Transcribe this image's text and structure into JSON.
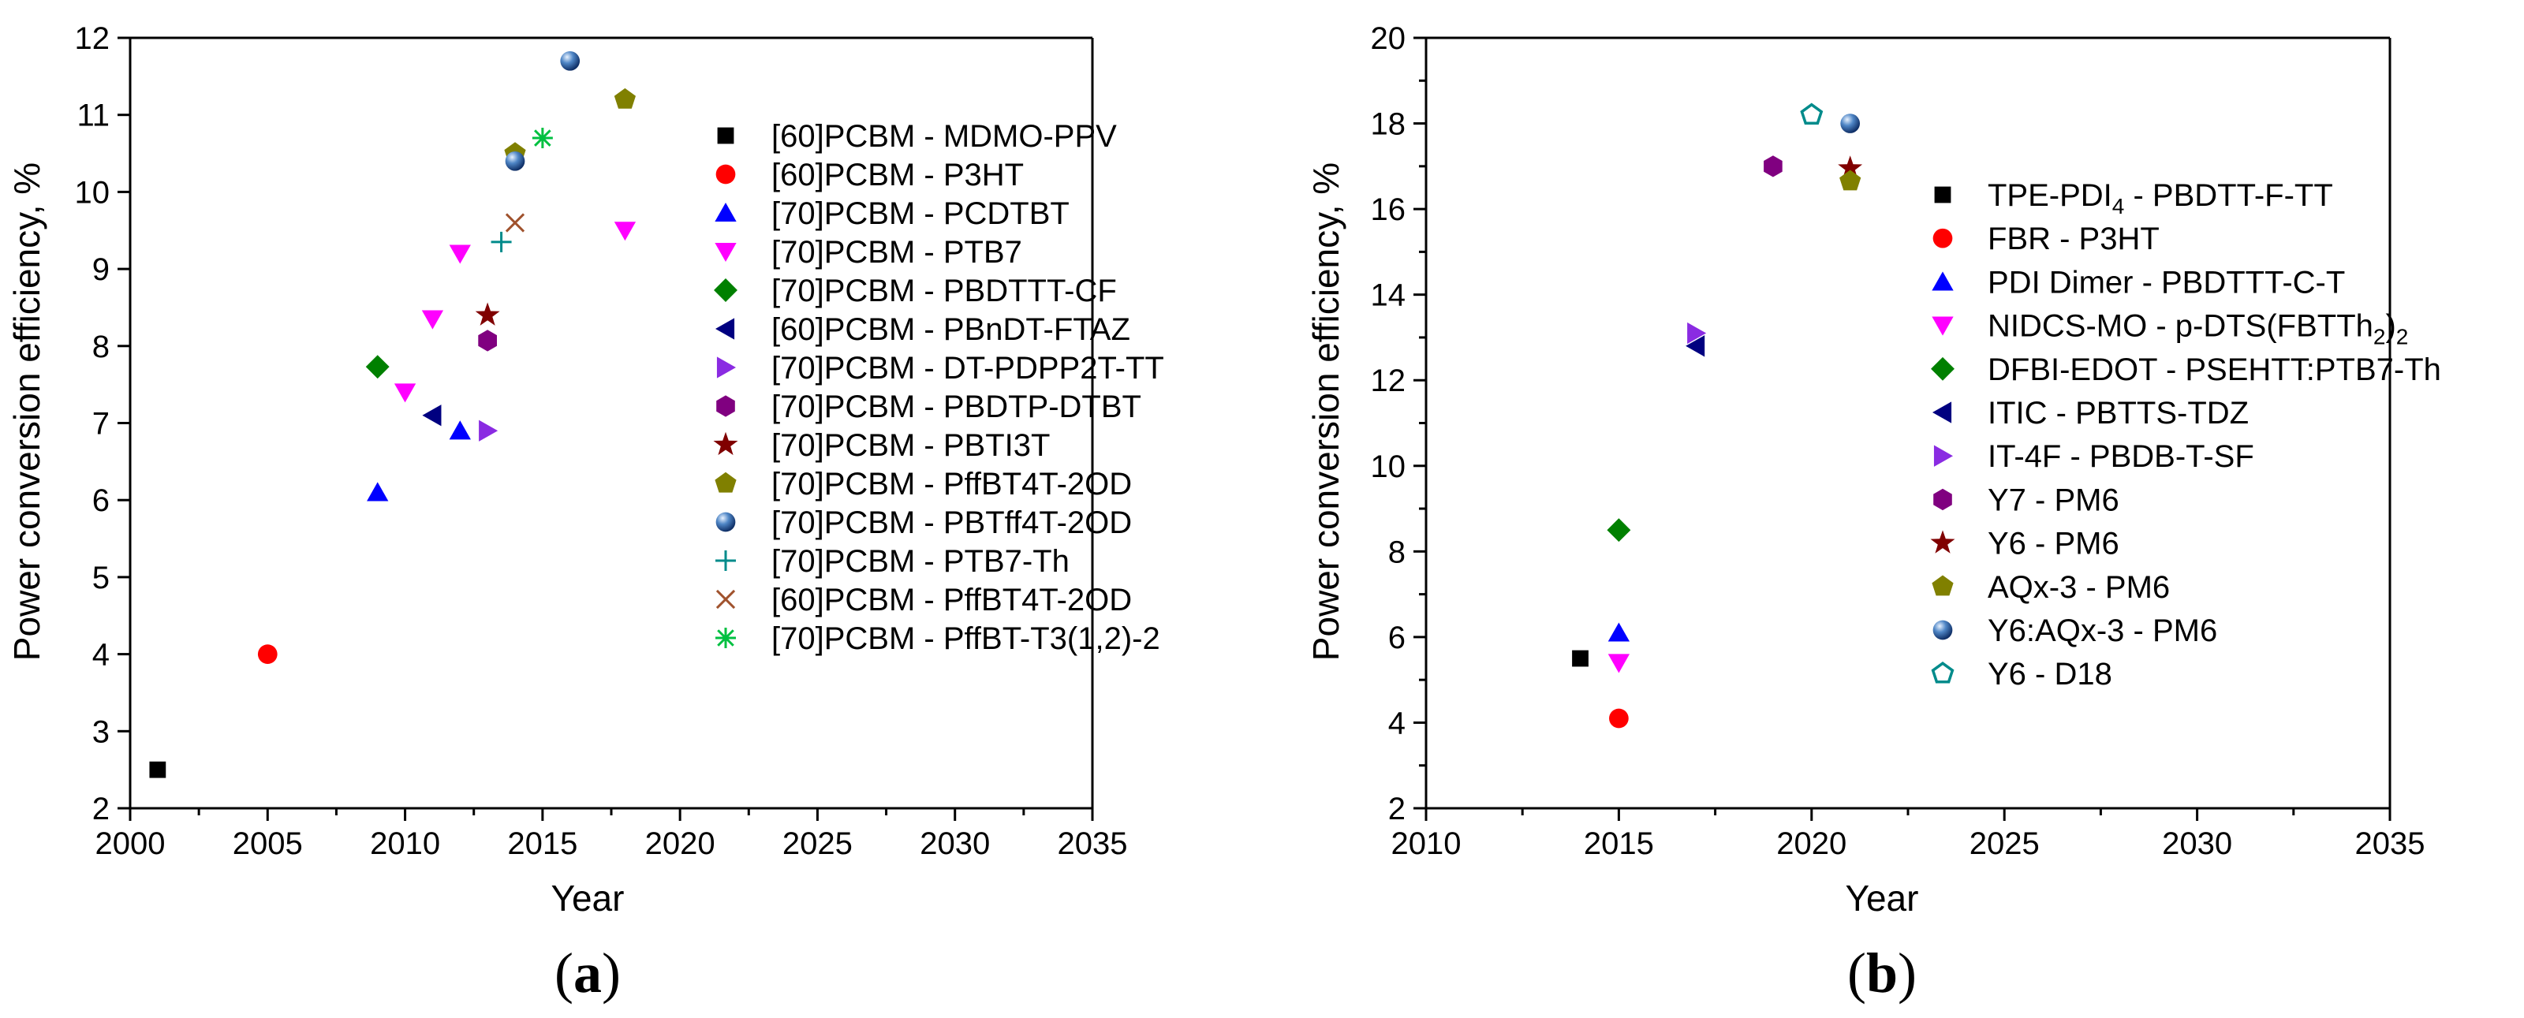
{
  "chart_data": [
    {
      "type": "scatter",
      "panel_label": "a",
      "title": "",
      "xlabel": "Year",
      "ylabel": "Power conversion efficiency, %",
      "xlim": [
        2000,
        2035
      ],
      "ylim": [
        2,
        12
      ],
      "xticks": [
        2000,
        2005,
        2010,
        2015,
        2020,
        2025,
        2030,
        2035
      ],
      "yticks": [
        2,
        3,
        4,
        5,
        6,
        7,
        8,
        9,
        10,
        11,
        12
      ],
      "grid": false,
      "legend_position": "right",
      "series": [
        {
          "name": "[60]PCBM - MDMO-PPV",
          "marker": "square",
          "color": "#000000",
          "points": [
            [
              2001,
              2.5
            ]
          ]
        },
        {
          "name": "[60]PCBM - P3HT",
          "marker": "circle",
          "color": "#ff0000",
          "points": [
            [
              2005,
              4.0
            ]
          ]
        },
        {
          "name": "[70]PCBM - PCDTBT",
          "marker": "triangle-up",
          "color": "#0000ff",
          "points": [
            [
              2009,
              6.1
            ],
            [
              2012,
              6.9
            ]
          ]
        },
        {
          "name": "[70]PCBM - PTB7",
          "marker": "triangle-down",
          "color": "#ff00ff",
          "points": [
            [
              2010,
              7.4
            ],
            [
              2011,
              8.35
            ],
            [
              2012,
              9.2
            ],
            [
              2018,
              9.5
            ]
          ]
        },
        {
          "name": "[70]PCBM - PBDTTT-CF",
          "marker": "diamond",
          "color": "#008000",
          "points": [
            [
              2009,
              7.73
            ]
          ]
        },
        {
          "name": "[60]PCBM - PBnDT-FTAZ",
          "marker": "triangle-left",
          "color": "#000080",
          "points": [
            [
              2011,
              7.1
            ]
          ]
        },
        {
          "name": "[70]PCBM - DT-PDPP2T-TT",
          "marker": "triangle-right",
          "color": "#8a2be2",
          "points": [
            [
              2013,
              6.9
            ]
          ]
        },
        {
          "name": "[70]PCBM - PBDTP-DTBT",
          "marker": "hexagon",
          "color": "#800080",
          "points": [
            [
              2013,
              8.07
            ]
          ]
        },
        {
          "name": "[70]PCBM - PBTI3T",
          "marker": "star",
          "color": "#800000",
          "points": [
            [
              2013,
              8.4
            ]
          ]
        },
        {
          "name": "[70]PCBM - PffBT4T-2OD",
          "marker": "pentagon",
          "color": "#808000",
          "points": [
            [
              2014,
              10.5
            ],
            [
              2018,
              11.2
            ]
          ]
        },
        {
          "name": "[70]PCBM - PBTff4T-2OD",
          "marker": "sphere",
          "color": "#3a6fb0",
          "points": [
            [
              2014,
              10.4
            ],
            [
              2016,
              11.7
            ]
          ]
        },
        {
          "name": "[70]PCBM - PTB7-Th",
          "marker": "plus",
          "color": "#008b8b",
          "points": [
            [
              2013.5,
              9.35
            ]
          ]
        },
        {
          "name": "[60]PCBM - PffBT4T-2OD",
          "marker": "cross",
          "color": "#a0522d",
          "points": [
            [
              2014,
              9.6
            ]
          ]
        },
        {
          "name": "[70]PCBM - PffBT-T3(1,2)-2",
          "marker": "asterisk",
          "color": "#00c040",
          "points": [
            [
              2015,
              10.7
            ]
          ]
        }
      ]
    },
    {
      "type": "scatter",
      "panel_label": "b",
      "title": "",
      "xlabel": "Year",
      "ylabel": "Power conversion efficiency, %",
      "xlim": [
        2010,
        2035
      ],
      "ylim": [
        2,
        20
      ],
      "xticks": [
        2010,
        2015,
        2020,
        2025,
        2030,
        2035
      ],
      "yticks": [
        2,
        4,
        6,
        8,
        10,
        12,
        14,
        16,
        18,
        20
      ],
      "grid": false,
      "legend_position": "right",
      "series": [
        {
          "name": "TPE-PDI4 - PBDTT-F-TT",
          "name_base": "TPE-PDI",
          "name_sub": "4",
          "name_tail": " - PBDTT-F-TT",
          "marker": "square",
          "color": "#000000",
          "points": [
            [
              2014,
              5.5
            ]
          ]
        },
        {
          "name": "FBR - P3HT",
          "marker": "circle",
          "color": "#ff0000",
          "points": [
            [
              2015,
              4.1
            ]
          ]
        },
        {
          "name": "PDI Dimer - PBDTTT-C-T",
          "marker": "triangle-up",
          "color": "#0000ff",
          "points": [
            [
              2015,
              6.1
            ]
          ]
        },
        {
          "name": "NIDCS-MO - p-DTS(FBTTh2)2",
          "name_base": "NIDCS-MO - p-DTS(FBTTh",
          "name_sub": "2",
          "name_tail": ")",
          "name_sub2": "2",
          "marker": "triangle-down",
          "color": "#ff00ff",
          "points": [
            [
              2015,
              5.4
            ]
          ]
        },
        {
          "name": "DFBI-EDOT - PSEHTT:PTB7-Th",
          "marker": "diamond",
          "color": "#008000",
          "points": [
            [
              2015,
              8.5
            ]
          ]
        },
        {
          "name": "ITIC - PBTTS-TDZ",
          "marker": "triangle-left",
          "color": "#000080",
          "points": [
            [
              2017,
              12.8
            ]
          ]
        },
        {
          "name": "IT-4F - PBDB-T-SF",
          "marker": "triangle-right",
          "color": "#8a2be2",
          "points": [
            [
              2017,
              13.1
            ]
          ]
        },
        {
          "name": "Y7 - PM6",
          "marker": "hexagon",
          "color": "#800080",
          "points": [
            [
              2019,
              17.0
            ]
          ]
        },
        {
          "name": "Y6 - PM6",
          "marker": "star",
          "color": "#800000",
          "points": [
            [
              2021,
              16.95
            ]
          ]
        },
        {
          "name": "AQx-3 - PM6",
          "marker": "pentagon",
          "color": "#808000",
          "points": [
            [
              2021,
              16.65
            ]
          ]
        },
        {
          "name": "Y6:AQx-3 - PM6",
          "marker": "sphere",
          "color": "#3a6fb0",
          "points": [
            [
              2021,
              18.0
            ]
          ]
        },
        {
          "name": "Y6 - D18",
          "marker": "pentagon-open",
          "color": "#008b8b",
          "points": [
            [
              2020,
              18.2
            ]
          ]
        }
      ]
    }
  ]
}
